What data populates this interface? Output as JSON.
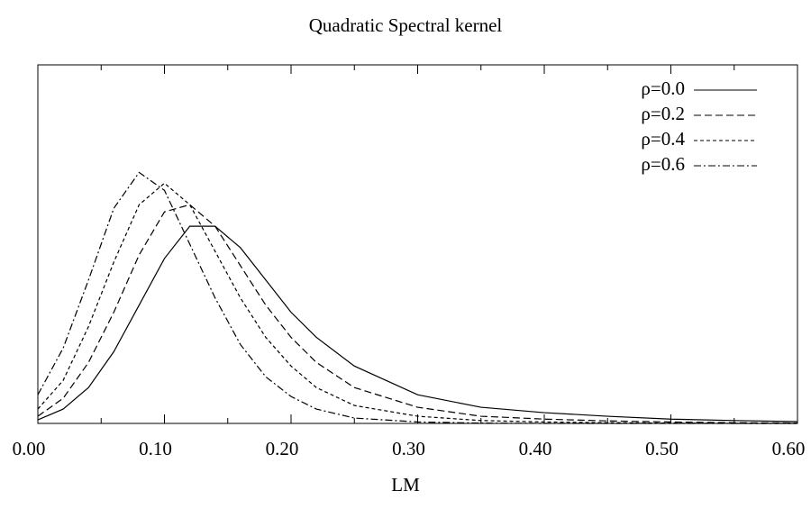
{
  "chart_data": {
    "type": "line",
    "title": "Quadratic Spectral kernel",
    "x_label": "LM",
    "x": [
      0,
      0.02,
      0.04,
      0.06,
      0.08,
      0.1,
      0.12,
      0.14,
      0.16,
      0.18,
      0.2,
      0.22,
      0.25,
      0.3,
      0.35,
      0.4,
      0.45,
      0.5,
      0.55,
      0.6
    ],
    "series": [
      {
        "name": "ρ=0.0",
        "color": "#000000",
        "dash": "solid",
        "values": [
          0.01,
          0.04,
          0.1,
          0.2,
          0.33,
          0.46,
          0.55,
          0.55,
          0.49,
          0.4,
          0.31,
          0.24,
          0.16,
          0.08,
          0.045,
          0.03,
          0.02,
          0.012,
          0.008,
          0.005
        ]
      },
      {
        "name": "ρ=0.2",
        "color": "#000000",
        "dash": "dashed",
        "values": [
          0.02,
          0.07,
          0.17,
          0.31,
          0.47,
          0.59,
          0.61,
          0.55,
          0.44,
          0.33,
          0.24,
          0.17,
          0.1,
          0.045,
          0.02,
          0.012,
          0.007,
          0.004,
          0.002,
          0.001
        ]
      },
      {
        "name": "ρ=0.4",
        "color": "#000000",
        "dash": "dotted",
        "values": [
          0.04,
          0.12,
          0.27,
          0.45,
          0.61,
          0.67,
          0.61,
          0.48,
          0.35,
          0.24,
          0.16,
          0.1,
          0.05,
          0.02,
          0.008,
          0.004,
          0.002,
          0.001,
          0,
          0
        ]
      },
      {
        "name": "ρ=0.6",
        "color": "#000000",
        "dash": "dashdot",
        "values": [
          0.08,
          0.21,
          0.4,
          0.6,
          0.7,
          0.65,
          0.5,
          0.35,
          0.22,
          0.13,
          0.075,
          0.04,
          0.015,
          0.004,
          0.001,
          0,
          0,
          0,
          0,
          0
        ]
      }
    ],
    "xlim": [
      0,
      0.6
    ],
    "ylim": [
      0,
      1
    ],
    "xticks": [
      {
        "value": 0,
        "label": "0.00"
      },
      {
        "value": 0.1,
        "label": "0.10"
      },
      {
        "value": 0.2,
        "label": "0.20"
      },
      {
        "value": 0.3,
        "label": "0.30"
      },
      {
        "value": 0.4,
        "label": "0.40"
      },
      {
        "value": 0.5,
        "label": "0.50"
      },
      {
        "value": 0.6,
        "label": "0.60"
      }
    ],
    "xminorticks": [
      0.05,
      0.15,
      0.25,
      0.35,
      0.45,
      0.55
    ],
    "legend": "top-right"
  }
}
